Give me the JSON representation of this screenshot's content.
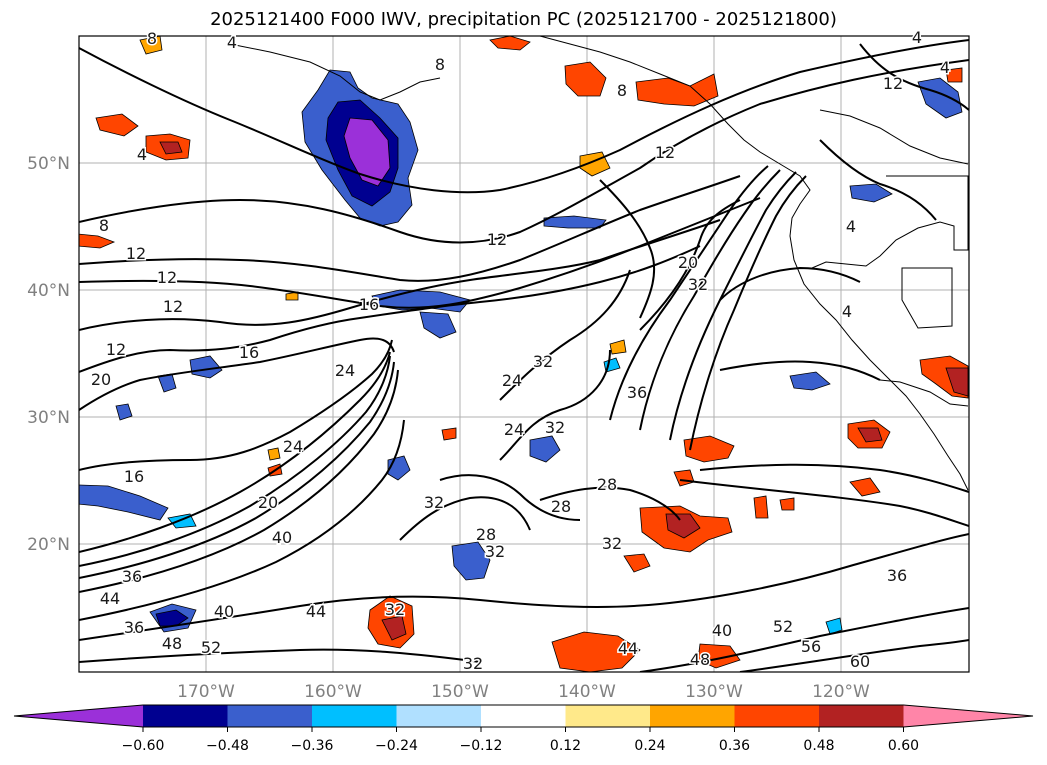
{
  "title": "2025121400 F000 IWV, precipitation PC (2025121700 - 2025121800)",
  "lat_labels": [
    "50°N",
    "40°N",
    "30°N",
    "20°N"
  ],
  "lon_labels": [
    "170°W",
    "160°W",
    "150°W",
    "140°W",
    "130°W",
    "120°W"
  ],
  "colorbar": {
    "ticks": [
      "−0.60",
      "−0.48",
      "−0.36",
      "−0.24",
      "−0.12",
      "0.12",
      "0.24",
      "0.36",
      "0.48",
      "0.60"
    ],
    "colors": [
      "#9b30d9",
      "#000090",
      "#3a5fcd",
      "#00bfff",
      "#b0e0ff",
      "#ffffff",
      "#ffe98a",
      "#ffa500",
      "#ff4500",
      "#b22222",
      "#ff85a8"
    ]
  },
  "contour_labels": [
    "8",
    "4",
    "8",
    "4",
    "12",
    "8",
    "12",
    "4",
    "8",
    "12",
    "12",
    "12",
    "12",
    "16",
    "12",
    "16",
    "20",
    "20",
    "16",
    "24",
    "24",
    "24",
    "20",
    "28",
    "40",
    "32",
    "32",
    "32",
    "24",
    "36",
    "32",
    "28",
    "28",
    "32",
    "36",
    "36",
    "44",
    "36",
    "40",
    "48",
    "52",
    "44",
    "32",
    "44",
    "40",
    "48",
    "52",
    "56",
    "60",
    "32",
    "32",
    "4",
    "4",
    "4"
  ]
}
